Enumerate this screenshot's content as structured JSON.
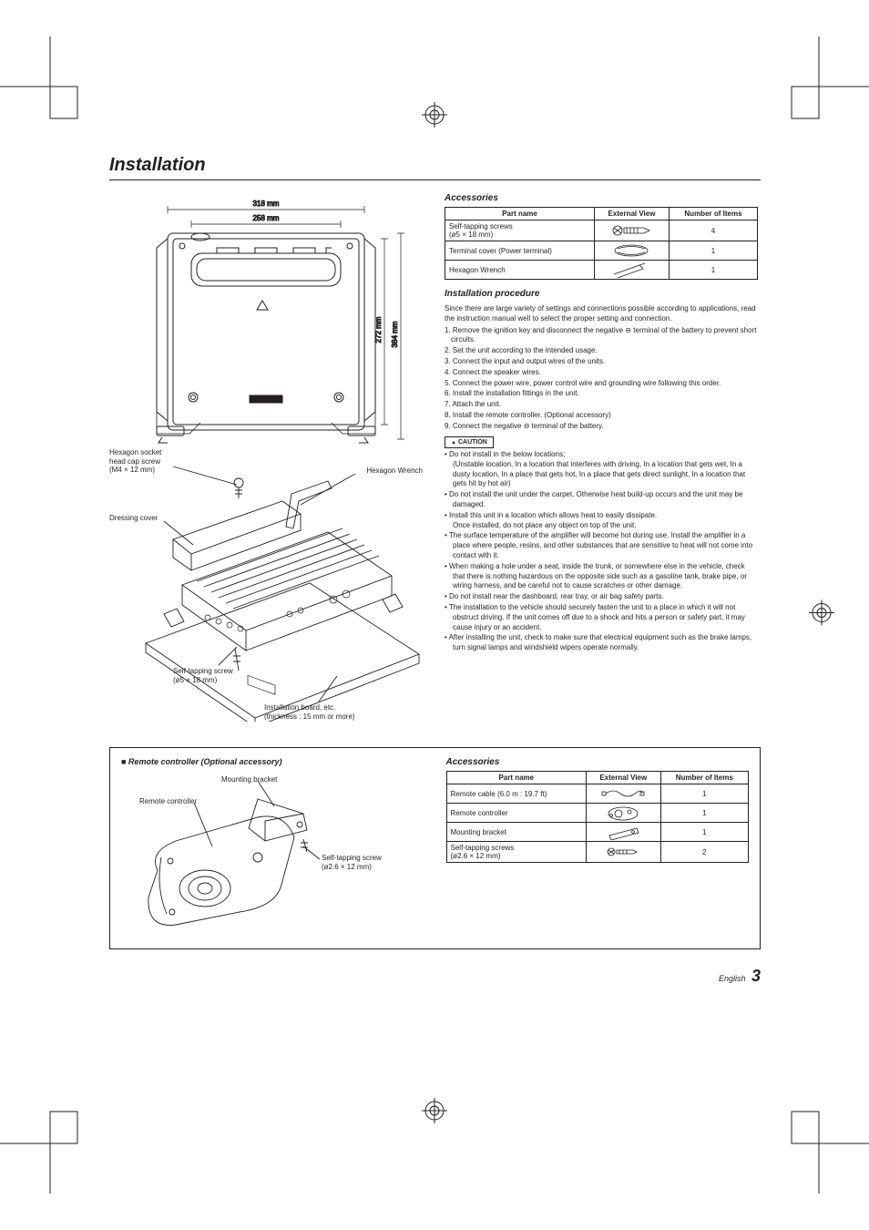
{
  "page": {
    "title": "Installation",
    "footer_lang": "English",
    "footer_page": "3"
  },
  "top_diagram": {
    "dim_w": "318 mm",
    "dim_inner_w": "258 mm",
    "dim_h_outer": "384 mm",
    "dim_h_inner": "272 mm"
  },
  "iso_diagram": {
    "label_hex_screw_1": "Hexagon socket",
    "label_hex_screw_2": "head cap screw",
    "label_hex_screw_3": "(M4 × 12 mm)",
    "label_hex_wrench": "Hexagon Wrench",
    "label_dressing": "Dressing cover",
    "label_selftap_1": "Self-tapping screw",
    "label_selftap_2": "(ø5 × 18 mm)",
    "label_board_1": "Installation board, etc.",
    "label_board_2": "(thickness : 15 mm or more)"
  },
  "accessories1": {
    "heading": "Accessories",
    "col1": "Part name",
    "col2": "External View",
    "col3": "Number of Items",
    "rows": [
      {
        "name": "Self-tapping screws\n(ø5 × 18 mm)",
        "qty": "4",
        "icon": "screw"
      },
      {
        "name": "Terminal cover (Power terminal)",
        "qty": "1",
        "icon": "cover"
      },
      {
        "name": "Hexagon Wrench",
        "qty": "1",
        "icon": "wrench"
      }
    ]
  },
  "procedure": {
    "heading": "Installation procedure",
    "intro": "Since there are large variety of settings and connections possible according to applications, read the instruction manual well to select the proper setting and connection.",
    "steps": [
      "1. Remove the ignition key and disconnect the negative ⊖ terminal of the battery to prevent short circuits.",
      "2. Set the unit according to the intended usage.",
      "3. Connect the input and output wires of the units.",
      "4. Connect the speaker wires.",
      "5. Connect the power wire, power control wire and grounding wire following this order.",
      "6. Install the installation fittings in the unit.",
      "7. Attach the unit.",
      "8. Install the remote controller. (Optional accessory)",
      "9. Connect the negative ⊖ terminal of the battery."
    ],
    "caution_label": "CAUTION",
    "cautions": [
      "Do not install in the below locations;\n(Unstable location, In a location that interferes with driving, In a location that gets wet, In a dusty location, In a place that gets hot, In a place that gets direct sunlight, In a location that gets hit by hot air)",
      "Do not install the unit under the carpet. Otherwise heat build-up occurs and the unit may be damaged.",
      "Install this unit in a location which allows heat to easily dissipate.\nOnce installed, do not place any object on top of the unit.",
      "The surface temperature of the amplifier will become hot during use. Install the amplifier in a place where people, resins, and other substances that are sensitive to heat will not come into contact with it.",
      "When making a hole under a seat, inside the trunk, or somewhere else in the vehicle, check that there is nothing hazardous on the opposite side such as a gasoline tank, brake pipe, or wiring harness, and be careful not to cause scratches or other damage.",
      "Do not install near the dashboard, rear tray, or air bag safety parts.",
      "The installation to the vehicle should securely fasten the unit to a place in which it will not obstruct driving. If the unit comes off due to a shock and hits a person or safety part, it may cause injury or an accident.",
      "After installing the unit, check to make sure that electrical equipment such as the brake lamps, turn signal lamps and windshield wipers operate normally."
    ]
  },
  "remote": {
    "heading": "■ Remote controller (Optional accessory)",
    "label_bracket": "Mounting bracket",
    "label_controller": "Remote controller",
    "label_screw_1": "Self-tapping screw",
    "label_screw_2": "(ø2.6 × 12 mm)"
  },
  "accessories2": {
    "heading": "Accessories",
    "col1": "Part name",
    "col2": "External View",
    "col3": "Number of Items",
    "rows": [
      {
        "name": "Remote cable (6.0 m : 19.7 ft)",
        "qty": "1",
        "icon": "cable"
      },
      {
        "name": "Remote controller",
        "qty": "1",
        "icon": "remote"
      },
      {
        "name": "Mounting bracket",
        "qty": "1",
        "icon": "bracket"
      },
      {
        "name": "Self-tapping screws\n(ø2.6 × 12 mm)",
        "qty": "2",
        "icon": "screw2"
      }
    ]
  },
  "colors": {
    "stroke": "#231f20",
    "light": "#9c9e9f",
    "bg": "#ffffff"
  }
}
